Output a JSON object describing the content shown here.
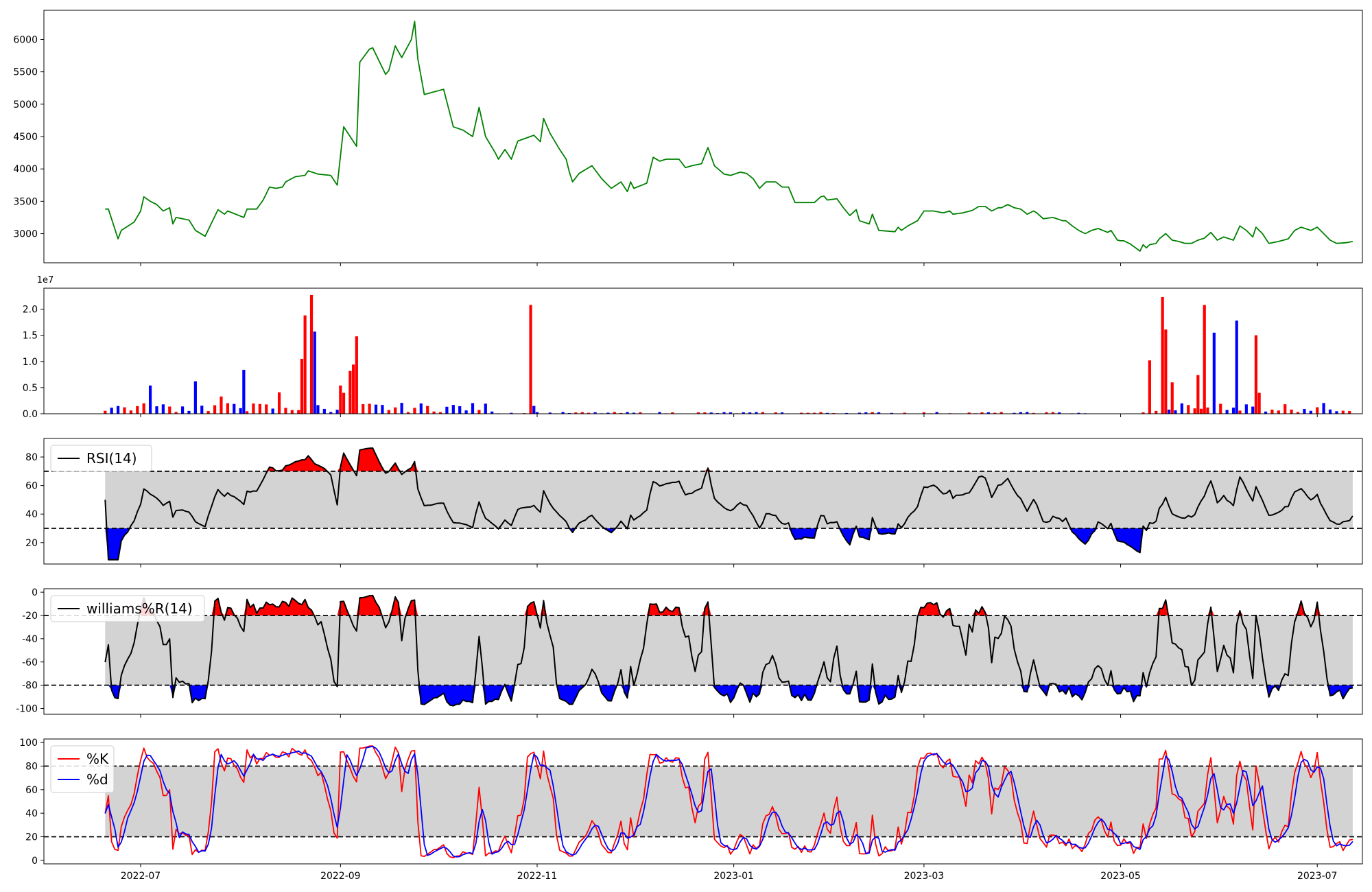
{
  "colors": {
    "price_line": "#008000",
    "vol_up": "#ff0000",
    "vol_down": "#0000ff",
    "vol_flat": "#000000",
    "band_fill": "#d3d3d3",
    "overbought_fill": "#ff0000",
    "oversold_fill": "#0000ff",
    "indicator_line": "#000000",
    "k_line": "#ff0000",
    "d_line": "#0000ff"
  },
  "x_axis": {
    "range": [
      "2022-06-01",
      "2023-07-15"
    ],
    "ticks": [
      {
        "date": "2022-07-01",
        "label": "2022-07"
      },
      {
        "date": "2022-09-01",
        "label": "2022-09"
      },
      {
        "date": "2022-11-01",
        "label": "2022-11"
      },
      {
        "date": "2023-01-01",
        "label": "2023-01"
      },
      {
        "date": "2023-03-01",
        "label": "2023-03"
      },
      {
        "date": "2023-05-01",
        "label": "2023-05"
      },
      {
        "date": "2023-07-01",
        "label": "2023-07"
      }
    ]
  },
  "chart_data": [
    {
      "type": "line",
      "panel": "price",
      "ylim": [
        2550,
        6450
      ],
      "yticks": [
        3000,
        3500,
        4000,
        4500,
        5000,
        5500,
        6000
      ],
      "series": [
        {
          "points": [
            [
              "2022-06-20",
              3380
            ],
            [
              "2022-06-21",
              3380
            ],
            [
              "2022-06-24",
              2920
            ],
            [
              "2022-06-25",
              3050
            ],
            [
              "2022-06-29",
              3180
            ],
            [
              "2022-07-01",
              3350
            ],
            [
              "2022-07-02",
              3570
            ],
            [
              "2022-07-04",
              3500
            ],
            [
              "2022-07-06",
              3450
            ],
            [
              "2022-07-08",
              3350
            ],
            [
              "2022-07-10",
              3400
            ],
            [
              "2022-07-11",
              3150
            ],
            [
              "2022-07-12",
              3250
            ],
            [
              "2022-07-16",
              3210
            ],
            [
              "2022-07-18",
              3050
            ],
            [
              "2022-07-21",
              2960
            ],
            [
              "2022-07-25",
              3370
            ],
            [
              "2022-07-27",
              3300
            ],
            [
              "2022-07-28",
              3350
            ],
            [
              "2022-08-02",
              3250
            ],
            [
              "2022-08-03",
              3380
            ],
            [
              "2022-08-06",
              3380
            ],
            [
              "2022-08-08",
              3520
            ],
            [
              "2022-08-10",
              3720
            ],
            [
              "2022-08-12",
              3700
            ],
            [
              "2022-08-14",
              3720
            ],
            [
              "2022-08-15",
              3800
            ],
            [
              "2022-08-18",
              3880
            ],
            [
              "2022-08-21",
              3900
            ],
            [
              "2022-08-22",
              3970
            ],
            [
              "2022-08-25",
              3920
            ],
            [
              "2022-08-29",
              3900
            ],
            [
              "2022-08-31",
              3750
            ],
            [
              "2022-09-02",
              4650
            ],
            [
              "2022-09-06",
              4350
            ],
            [
              "2022-09-07",
              5650
            ],
            [
              "2022-09-10",
              5850
            ],
            [
              "2022-09-11",
              5870
            ],
            [
              "2022-09-15",
              5460
            ],
            [
              "2022-09-16",
              5520
            ],
            [
              "2022-09-18",
              5900
            ],
            [
              "2022-09-20",
              5720
            ],
            [
              "2022-09-23",
              6000
            ],
            [
              "2022-09-24",
              6280
            ],
            [
              "2022-09-25",
              5700
            ],
            [
              "2022-09-27",
              5150
            ],
            [
              "2022-10-03",
              5230
            ],
            [
              "2022-10-06",
              4650
            ],
            [
              "2022-10-09",
              4600
            ],
            [
              "2022-10-12",
              4500
            ],
            [
              "2022-10-14",
              4950
            ],
            [
              "2022-10-16",
              4500
            ],
            [
              "2022-10-19",
              4250
            ],
            [
              "2022-10-20",
              4150
            ],
            [
              "2022-10-22",
              4300
            ],
            [
              "2022-10-24",
              4150
            ],
            [
              "2022-10-26",
              4430
            ],
            [
              "2022-10-31",
              4520
            ],
            [
              "2022-11-02",
              4420
            ],
            [
              "2022-11-03",
              4780
            ],
            [
              "2022-11-05",
              4550
            ],
            [
              "2022-11-08",
              4300
            ],
            [
              "2022-11-10",
              4150
            ],
            [
              "2022-11-11",
              3950
            ],
            [
              "2022-11-12",
              3800
            ],
            [
              "2022-11-14",
              3930
            ],
            [
              "2022-11-18",
              4050
            ],
            [
              "2022-11-21",
              3850
            ],
            [
              "2022-11-22",
              3800
            ],
            [
              "2022-11-24",
              3700
            ],
            [
              "2022-11-27",
              3800
            ],
            [
              "2022-11-29",
              3650
            ],
            [
              "2022-11-30",
              3800
            ],
            [
              "2022-12-01",
              3700
            ],
            [
              "2022-12-05",
              3780
            ],
            [
              "2022-12-07",
              4180
            ],
            [
              "2022-12-09",
              4120
            ],
            [
              "2022-12-11",
              4150
            ],
            [
              "2022-12-15",
              4150
            ],
            [
              "2022-12-17",
              4020
            ],
            [
              "2022-12-19",
              4050
            ],
            [
              "2022-12-22",
              4080
            ],
            [
              "2022-12-24",
              4330
            ],
            [
              "2022-12-26",
              4050
            ],
            [
              "2022-12-29",
              3920
            ],
            [
              "2022-12-31",
              3900
            ],
            [
              "2023-01-03",
              3950
            ],
            [
              "2023-01-05",
              3930
            ],
            [
              "2023-01-07",
              3850
            ],
            [
              "2023-01-09",
              3700
            ],
            [
              "2023-01-11",
              3800
            ],
            [
              "2023-01-14",
              3800
            ],
            [
              "2023-01-16",
              3720
            ],
            [
              "2023-01-18",
              3720
            ],
            [
              "2023-01-20",
              3480
            ],
            [
              "2023-01-26",
              3480
            ],
            [
              "2023-01-28",
              3570
            ],
            [
              "2023-01-29",
              3580
            ],
            [
              "2023-01-30",
              3520
            ],
            [
              "2023-02-02",
              3540
            ],
            [
              "2023-02-04",
              3400
            ],
            [
              "2023-02-06",
              3280
            ],
            [
              "2023-02-08",
              3370
            ],
            [
              "2023-02-09",
              3200
            ],
            [
              "2023-02-12",
              3150
            ],
            [
              "2023-02-13",
              3300
            ],
            [
              "2023-02-15",
              3050
            ],
            [
              "2023-02-20",
              3030
            ],
            [
              "2023-02-21",
              3100
            ],
            [
              "2023-02-22",
              3050
            ],
            [
              "2023-02-24",
              3120
            ],
            [
              "2023-02-27",
              3200
            ],
            [
              "2023-03-01",
              3350
            ],
            [
              "2023-03-04",
              3350
            ],
            [
              "2023-03-07",
              3320
            ],
            [
              "2023-03-09",
              3350
            ],
            [
              "2023-03-10",
              3300
            ],
            [
              "2023-03-13",
              3320
            ],
            [
              "2023-03-16",
              3360
            ],
            [
              "2023-03-18",
              3420
            ],
            [
              "2023-03-20",
              3420
            ],
            [
              "2023-03-22",
              3350
            ],
            [
              "2023-03-24",
              3400
            ],
            [
              "2023-03-25",
              3400
            ],
            [
              "2023-03-27",
              3450
            ],
            [
              "2023-03-29",
              3400
            ],
            [
              "2023-03-31",
              3380
            ],
            [
              "2023-04-02",
              3300
            ],
            [
              "2023-04-04",
              3350
            ],
            [
              "2023-04-05",
              3320
            ],
            [
              "2023-04-07",
              3230
            ],
            [
              "2023-04-10",
              3250
            ],
            [
              "2023-04-13",
              3200
            ],
            [
              "2023-04-14",
              3200
            ],
            [
              "2023-04-16",
              3120
            ],
            [
              "2023-04-18",
              3050
            ],
            [
              "2023-04-20",
              3000
            ],
            [
              "2023-04-22",
              3050
            ],
            [
              "2023-04-24",
              3080
            ],
            [
              "2023-04-27",
              3020
            ],
            [
              "2023-04-28",
              3050
            ],
            [
              "2023-04-30",
              2900
            ],
            [
              "2023-05-01",
              2890
            ],
            [
              "2023-05-02",
              2890
            ],
            [
              "2023-05-04",
              2840
            ],
            [
              "2023-05-07",
              2730
            ],
            [
              "2023-05-08",
              2830
            ],
            [
              "2023-05-09",
              2780
            ],
            [
              "2023-05-10",
              2830
            ],
            [
              "2023-05-12",
              2850
            ],
            [
              "2023-05-13",
              2920
            ],
            [
              "2023-05-15",
              3000
            ],
            [
              "2023-05-17",
              2900
            ],
            [
              "2023-05-19",
              2880
            ],
            [
              "2023-05-21",
              2850
            ],
            [
              "2023-05-23",
              2850
            ],
            [
              "2023-05-25",
              2900
            ],
            [
              "2023-05-27",
              2930
            ],
            [
              "2023-05-29",
              3020
            ],
            [
              "2023-05-31",
              2900
            ],
            [
              "2023-06-02",
              2950
            ],
            [
              "2023-06-05",
              2900
            ],
            [
              "2023-06-07",
              3120
            ],
            [
              "2023-06-09",
              3050
            ],
            [
              "2023-06-11",
              2950
            ],
            [
              "2023-06-12",
              3100
            ],
            [
              "2023-06-14",
              3000
            ],
            [
              "2023-06-16",
              2850
            ],
            [
              "2023-06-19",
              2880
            ],
            [
              "2023-06-22",
              2920
            ],
            [
              "2023-06-24",
              3050
            ],
            [
              "2023-06-26",
              3100
            ],
            [
              "2023-06-29",
              3050
            ],
            [
              "2023-07-01",
              3100
            ],
            [
              "2023-07-03",
              3000
            ],
            [
              "2023-07-05",
              2900
            ],
            [
              "2023-07-07",
              2850
            ],
            [
              "2023-07-10",
              2860
            ],
            [
              "2023-07-12",
              2880
            ]
          ]
        }
      ]
    },
    {
      "type": "bar",
      "panel": "volume",
      "ylim": [
        0,
        24000000.0
      ],
      "yticks": [
        0,
        5000000.0,
        10000000.0,
        15000000.0,
        20000000.0
      ],
      "ytick_labels": [
        "0.0",
        "0.5",
        "1.0",
        "1.5",
        "2.0"
      ],
      "offset_label": "1e7"
    },
    {
      "type": "line",
      "panel": "rsi",
      "ylim": [
        5,
        93
      ],
      "yticks": [
        20,
        40,
        60,
        80
      ],
      "band": [
        30,
        70
      ],
      "legend": [
        "RSI(14)"
      ]
    },
    {
      "type": "line",
      "panel": "williams",
      "ylim": [
        -105,
        3
      ],
      "yticks": [
        0,
        -20,
        -40,
        -60,
        -80,
        -100
      ],
      "band": [
        -80,
        -20
      ],
      "legend": [
        "williams%R(14)"
      ]
    },
    {
      "type": "line",
      "panel": "stochastic",
      "ylim": [
        -3,
        103
      ],
      "yticks": [
        0,
        20,
        40,
        60,
        80,
        100
      ],
      "band": [
        20,
        80
      ],
      "legend": [
        "%K",
        "%d"
      ]
    }
  ]
}
